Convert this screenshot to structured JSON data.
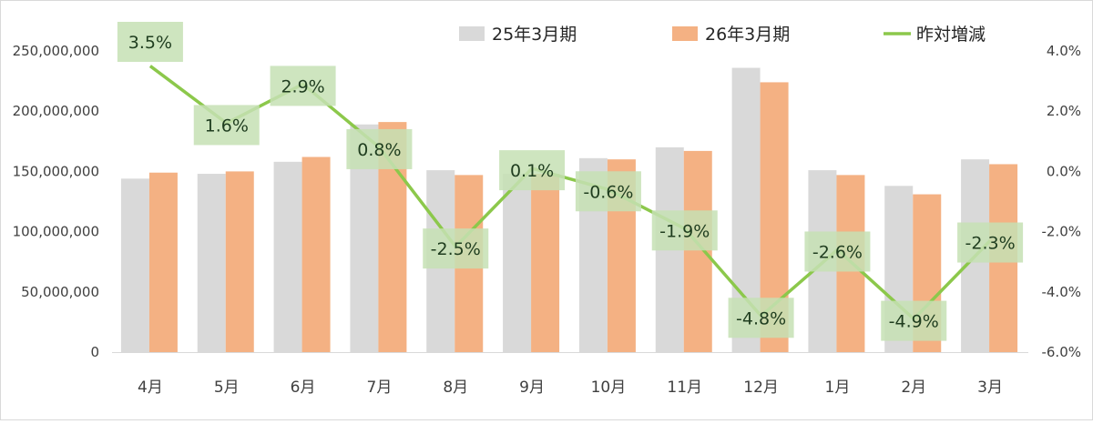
{
  "chart_data": {
    "type": "bar",
    "combo": "bar+line",
    "categories": [
      "4月",
      "5月",
      "6月",
      "7月",
      "8月",
      "9月",
      "10月",
      "11月",
      "12月",
      "1月",
      "2月",
      "3月"
    ],
    "series": [
      {
        "name": "25年3月期",
        "type": "bar",
        "axis": "left",
        "color": "#d9d9d9",
        "values": [
          144000000,
          148000000,
          158000000,
          189000000,
          151000000,
          148000000,
          161000000,
          170000000,
          236000000,
          151000000,
          138000000,
          160000000
        ]
      },
      {
        "name": "26年3月期",
        "type": "bar",
        "axis": "left",
        "color": "#f4b183",
        "values": [
          149000000,
          150000000,
          162000000,
          191000000,
          147000000,
          148000000,
          160000000,
          167000000,
          224000000,
          147000000,
          131000000,
          156000000
        ]
      },
      {
        "name": "昨対増減",
        "type": "line",
        "axis": "right",
        "color": "#8cc84b",
        "values": [
          3.5,
          1.6,
          2.9,
          0.8,
          -2.5,
          0.1,
          -0.6,
          -1.9,
          -4.8,
          -2.6,
          -4.9,
          -2.3
        ],
        "labels": [
          "3.5%",
          "1.6%",
          "2.9%",
          "0.8%",
          "-2.5%",
          "0.1%",
          "-0.6%",
          "-1.9%",
          "-4.8%",
          "-2.6%",
          "-4.9%",
          "-2.3%"
        ]
      }
    ],
    "y_left": {
      "ylim": [
        0,
        250000000
      ],
      "ticks": [
        0,
        50000000,
        100000000,
        150000000,
        200000000,
        250000000
      ],
      "tick_labels": [
        "0",
        "50,000,000",
        "100,000,000",
        "150,000,000",
        "200,000,000",
        "250,000,000"
      ]
    },
    "y_right": {
      "ylim": [
        -6,
        4
      ],
      "ticks": [
        -6,
        -4,
        -2,
        0,
        2,
        4
      ],
      "tick_labels": [
        "-6.0%",
        "-4.0%",
        "-2.0%",
        "0.0%",
        "2.0%",
        "4.0%"
      ]
    },
    "grid": false,
    "legend": {
      "position": "top-right",
      "entries": [
        "25年3月期",
        "26年3月期",
        "昨対増減"
      ]
    },
    "label_box_color": "#c6e0b4"
  }
}
